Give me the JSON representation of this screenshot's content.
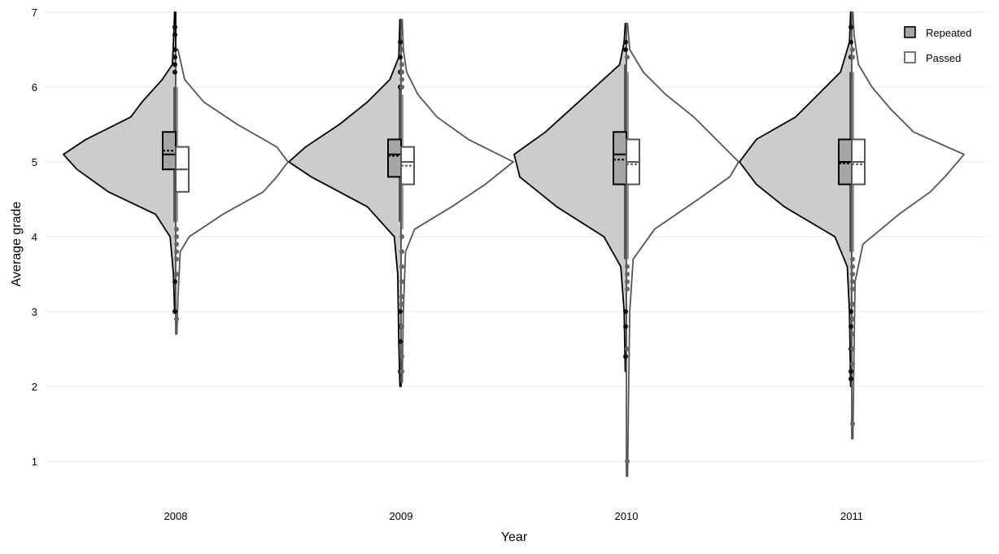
{
  "chart_data": {
    "type": "split-violin-boxplot",
    "title": "",
    "xlabel": "Year",
    "ylabel": "Average grade",
    "ylim": [
      0.7,
      7.0
    ],
    "yticks": [
      1,
      2,
      3,
      4,
      5,
      6,
      7
    ],
    "grid": true,
    "legend_position": "top-right",
    "categories": [
      "2008",
      "2009",
      "2010",
      "2011"
    ],
    "series": [
      {
        "name": "Repeated",
        "fill": "#cccccc",
        "box_fill": "#a6a6a6",
        "stroke": "#000000",
        "groups": [
          {
            "box": {
              "q1": 4.9,
              "median": 5.1,
              "q3": 5.4,
              "mean": 5.15,
              "whisker_low": 4.2,
              "whisker_high": 6.0
            },
            "outliers": [
              6.2,
              6.3,
              6.4,
              6.5,
              6.7,
              6.8,
              3.4,
              3.0
            ],
            "density": [
              [
                3.0,
                0.01
              ],
              [
                3.5,
                0.02
              ],
              [
                4.0,
                0.05
              ],
              [
                4.3,
                0.18
              ],
              [
                4.6,
                0.6
              ],
              [
                4.9,
                0.88
              ],
              [
                5.1,
                1.0
              ],
              [
                5.3,
                0.8
              ],
              [
                5.6,
                0.4
              ],
              [
                5.8,
                0.3
              ],
              [
                6.1,
                0.12
              ],
              [
                6.3,
                0.03
              ],
              [
                6.6,
                0.02
              ],
              [
                7.0,
                0.01
              ]
            ]
          },
          {
            "box": {
              "q1": 4.8,
              "median": 5.1,
              "q3": 5.3,
              "mean": 5.08,
              "whisker_low": 4.2,
              "whisker_high": 6.0
            },
            "outliers": [
              6.0,
              6.2,
              6.4,
              6.6,
              3.0,
              2.8,
              2.6,
              2.2
            ],
            "density": [
              [
                2.0,
                0.01
              ],
              [
                2.6,
                0.02
              ],
              [
                3.5,
                0.03
              ],
              [
                4.0,
                0.06
              ],
              [
                4.4,
                0.3
              ],
              [
                4.8,
                0.8
              ],
              [
                5.0,
                1.0
              ],
              [
                5.2,
                0.85
              ],
              [
                5.5,
                0.55
              ],
              [
                5.8,
                0.3
              ],
              [
                6.1,
                0.1
              ],
              [
                6.4,
                0.02
              ],
              [
                6.9,
                0.01
              ]
            ]
          },
          {
            "box": {
              "q1": 4.7,
              "median": 5.1,
              "q3": 5.4,
              "mean": 5.03,
              "whisker_low": 3.7,
              "whisker_high": 6.3
            },
            "outliers": [
              6.5,
              6.6,
              3.0,
              2.8,
              2.4
            ],
            "density": [
              [
                2.2,
                0.01
              ],
              [
                3.0,
                0.02
              ],
              [
                3.6,
                0.05
              ],
              [
                4.0,
                0.2
              ],
              [
                4.4,
                0.62
              ],
              [
                4.8,
                0.95
              ],
              [
                5.1,
                1.0
              ],
              [
                5.4,
                0.72
              ],
              [
                5.7,
                0.5
              ],
              [
                6.0,
                0.28
              ],
              [
                6.3,
                0.06
              ],
              [
                6.6,
                0.02
              ],
              [
                6.85,
                0.01
              ]
            ]
          },
          {
            "box": {
              "q1": 4.7,
              "median": 5.0,
              "q3": 5.3,
              "mean": 4.98,
              "whisker_low": 3.8,
              "whisker_high": 6.2
            },
            "outliers": [
              6.4,
              6.6,
              6.8,
              3.0,
              2.8,
              2.5,
              2.2,
              2.1
            ],
            "density": [
              [
                2.0,
                0.01
              ],
              [
                3.0,
                0.02
              ],
              [
                3.6,
                0.04
              ],
              [
                4.0,
                0.15
              ],
              [
                4.4,
                0.6
              ],
              [
                4.7,
                0.85
              ],
              [
                5.0,
                1.0
              ],
              [
                5.3,
                0.85
              ],
              [
                5.6,
                0.5
              ],
              [
                5.9,
                0.3
              ],
              [
                6.2,
                0.1
              ],
              [
                6.6,
                0.02
              ],
              [
                7.0,
                0.01
              ]
            ]
          }
        ]
      },
      {
        "name": "Passed",
        "fill": "#ffffff",
        "box_fill": "#ffffff",
        "stroke": "#555555",
        "groups": [
          {
            "box": {
              "q1": 4.6,
              "median": 4.9,
              "q3": 5.2,
              "mean": 4.9,
              "whisker_low": 4.2,
              "whisker_high": 6.0
            },
            "outliers": [
              4.1,
              4.0,
              3.9,
              3.8,
              3.7,
              3.5,
              2.9
            ],
            "density": [
              [
                2.7,
                0.01
              ],
              [
                3.2,
                0.02
              ],
              [
                3.8,
                0.04
              ],
              [
                4.0,
                0.12
              ],
              [
                4.3,
                0.42
              ],
              [
                4.6,
                0.78
              ],
              [
                4.8,
                0.9
              ],
              [
                5.0,
                1.0
              ],
              [
                5.2,
                0.9
              ],
              [
                5.5,
                0.55
              ],
              [
                5.8,
                0.25
              ],
              [
                6.1,
                0.08
              ],
              [
                6.5,
                0.02
              ]
            ]
          },
          {
            "box": {
              "q1": 4.7,
              "median": 5.0,
              "q3": 5.2,
              "mean": 4.95,
              "whisker_low": 4.1,
              "whisker_high": 5.9
            },
            "outliers": [
              6.5,
              6.3,
              6.2,
              6.1,
              6.0,
              4.0,
              3.8,
              3.6,
              3.4,
              3.2,
              3.1,
              2.8,
              2.4,
              2.2
            ],
            "density": [
              [
                2.05,
                0.01
              ],
              [
                3.0,
                0.02
              ],
              [
                3.8,
                0.04
              ],
              [
                4.1,
                0.12
              ],
              [
                4.4,
                0.45
              ],
              [
                4.7,
                0.75
              ],
              [
                5.0,
                1.0
              ],
              [
                5.3,
                0.6
              ],
              [
                5.6,
                0.32
              ],
              [
                5.9,
                0.15
              ],
              [
                6.2,
                0.05
              ],
              [
                6.5,
                0.02
              ],
              [
                6.9,
                0.01
              ]
            ]
          },
          {
            "box": {
              "q1": 4.7,
              "median": 5.0,
              "q3": 5.3,
              "mean": 4.97,
              "whisker_low": 3.7,
              "whisker_high": 6.2
            },
            "outliers": [
              6.4,
              3.6,
              3.5,
              3.4,
              3.3,
              2.5,
              1.0
            ],
            "density": [
              [
                0.8,
                0.01
              ],
              [
                2.0,
                0.02
              ],
              [
                3.0,
                0.03
              ],
              [
                3.7,
                0.06
              ],
              [
                4.1,
                0.25
              ],
              [
                4.5,
                0.64
              ],
              [
                4.8,
                0.92
              ],
              [
                5.0,
                1.0
              ],
              [
                5.3,
                0.8
              ],
              [
                5.6,
                0.6
              ],
              [
                5.9,
                0.35
              ],
              [
                6.2,
                0.15
              ],
              [
                6.5,
                0.03
              ],
              [
                6.85,
                0.01
              ]
            ]
          },
          {
            "box": {
              "q1": 4.7,
              "median": 5.0,
              "q3": 5.3,
              "mean": 4.97,
              "whisker_low": 3.8,
              "whisker_high": 6.2
            },
            "outliers": [
              6.5,
              6.4,
              3.7,
              3.6,
              3.5,
              3.4,
              3.3,
              3.1,
              2.9,
              2.7,
              2.5,
              2.3,
              1.5
            ],
            "density": [
              [
                1.3,
                0.01
              ],
              [
                2.5,
                0.02
              ],
              [
                3.4,
                0.03
              ],
              [
                3.9,
                0.1
              ],
              [
                4.3,
                0.42
              ],
              [
                4.6,
                0.7
              ],
              [
                4.8,
                0.83
              ],
              [
                5.1,
                1.0
              ],
              [
                5.4,
                0.55
              ],
              [
                5.7,
                0.35
              ],
              [
                6.0,
                0.18
              ],
              [
                6.3,
                0.06
              ],
              [
                6.7,
                0.02
              ],
              [
                7.0,
                0.01
              ]
            ]
          }
        ]
      }
    ]
  }
}
